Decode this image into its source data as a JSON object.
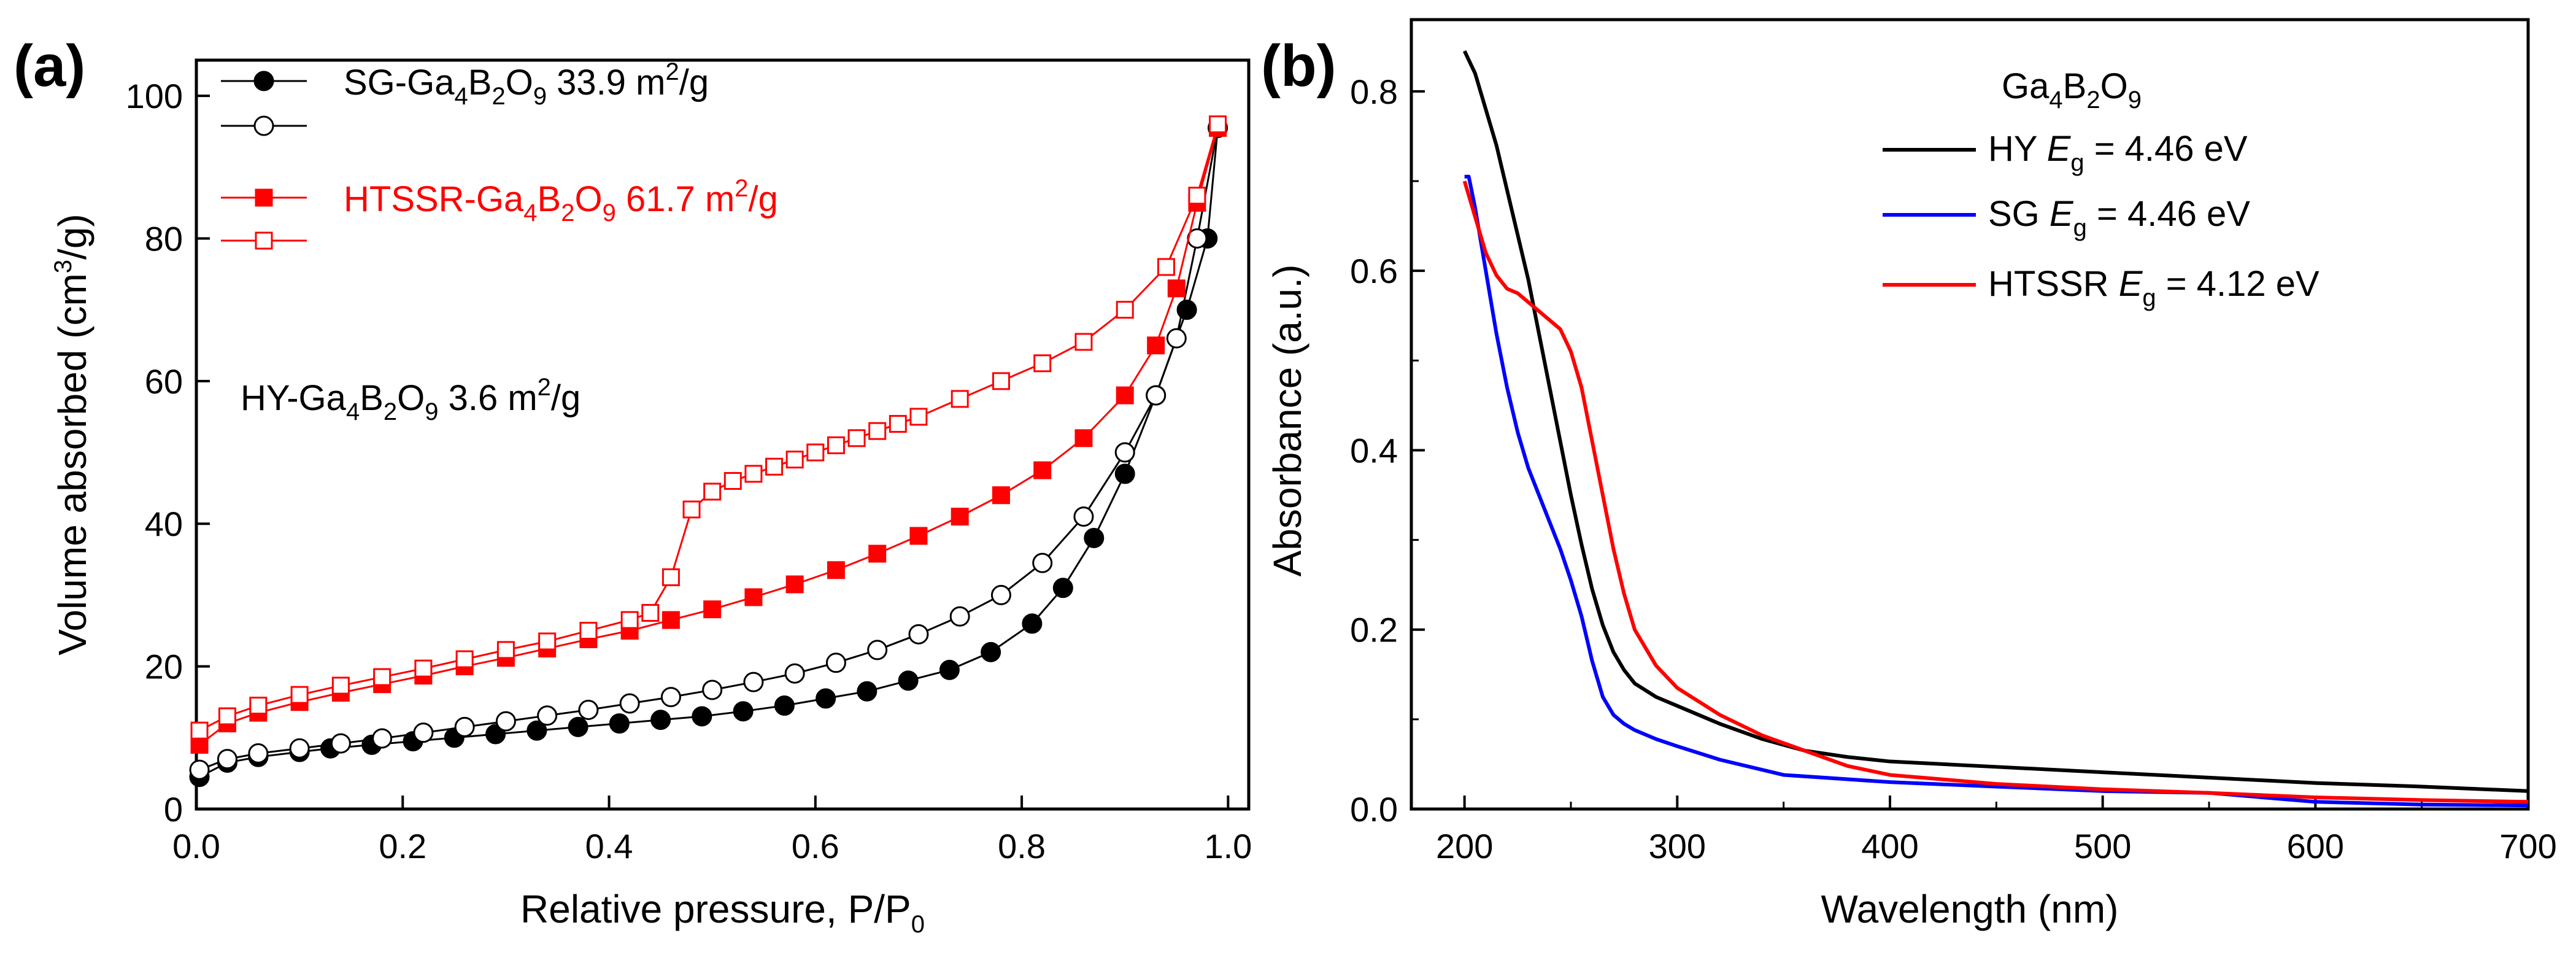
{
  "chart_data": [
    {
      "panel": "(a)",
      "type": "scatter",
      "xlabel_main": "Relative pressure, P/P",
      "xlabel_sub": "0",
      "ylabel_pre": "Volume absorbed (cm",
      "ylabel_sup": "3",
      "ylabel_post": "/g)",
      "xlim": [
        0.0,
        1.02
      ],
      "ylim": [
        0,
        105
      ],
      "xticks": [
        "0.0",
        "0.2",
        "0.4",
        "0.6",
        "0.8",
        "1.0"
      ],
      "yticks": [
        "0",
        "20",
        "40",
        "60",
        "80",
        "100"
      ],
      "legend": [
        {
          "parts": [
            "SG-Ga",
            "4",
            "B",
            "2",
            "O",
            "9",
            "  33.9 m",
            "2",
            "/g"
          ],
          "color": "#000000",
          "marker": "filled-circle"
        },
        {
          "parts": [],
          "color": "#000000",
          "marker": "open-circle"
        },
        {
          "parts": [
            "HTSSR-Ga",
            "4",
            "B",
            "2",
            "O",
            "9",
            "  61.7 m",
            "2",
            "/g"
          ],
          "color": "#ff0000",
          "marker": "filled-square"
        },
        {
          "parts": [],
          "color": "#ff0000",
          "marker": "open-square"
        }
      ],
      "annotation": {
        "parts": [
          "HY-Ga",
          "4",
          "B",
          "2",
          "O",
          "9",
          "  3.6 m",
          "2",
          "/g"
        ]
      },
      "series": [
        {
          "name": "SG adsorption",
          "color": "#000000",
          "marker": "circle",
          "filled": true,
          "x": [
            0.003,
            0.03,
            0.06,
            0.1,
            0.13,
            0.17,
            0.21,
            0.25,
            0.29,
            0.33,
            0.37,
            0.41,
            0.45,
            0.49,
            0.53,
            0.57,
            0.61,
            0.65,
            0.69,
            0.73,
            0.77,
            0.81,
            0.84,
            0.87,
            0.9,
            0.93,
            0.96,
            0.98,
            0.99
          ],
          "y": [
            4.5,
            6.5,
            7.3,
            8.0,
            8.5,
            9.0,
            9.5,
            10.0,
            10.5,
            11.0,
            11.5,
            12.0,
            12.5,
            13.0,
            13.7,
            14.5,
            15.5,
            16.5,
            18.0,
            19.5,
            22.0,
            26.0,
            31.0,
            38.0,
            47.0,
            58.0,
            70.0,
            80.0,
            95.5
          ]
        },
        {
          "name": "SG desorption",
          "color": "#000000",
          "marker": "circle",
          "filled": false,
          "x": [
            0.003,
            0.03,
            0.06,
            0.1,
            0.14,
            0.18,
            0.22,
            0.26,
            0.3,
            0.34,
            0.38,
            0.42,
            0.46,
            0.5,
            0.54,
            0.58,
            0.62,
            0.66,
            0.7,
            0.74,
            0.78,
            0.82,
            0.86,
            0.9,
            0.93,
            0.95,
            0.97,
            0.99
          ],
          "y": [
            5.5,
            7.0,
            7.8,
            8.5,
            9.2,
            9.9,
            10.7,
            11.5,
            12.3,
            13.1,
            13.9,
            14.8,
            15.7,
            16.7,
            17.8,
            19.0,
            20.5,
            22.3,
            24.5,
            27.0,
            30.0,
            34.5,
            41.0,
            50.0,
            58.0,
            66.0,
            80.0,
            95.5
          ]
        },
        {
          "name": "HTSSR adsorption",
          "color": "#ff0000",
          "marker": "square",
          "filled": true,
          "x": [
            0.003,
            0.03,
            0.06,
            0.1,
            0.14,
            0.18,
            0.22,
            0.26,
            0.3,
            0.34,
            0.38,
            0.42,
            0.46,
            0.5,
            0.54,
            0.58,
            0.62,
            0.66,
            0.7,
            0.74,
            0.78,
            0.82,
            0.86,
            0.9,
            0.93,
            0.95,
            0.97,
            0.99
          ],
          "y": [
            9.0,
            12.0,
            13.5,
            15.0,
            16.3,
            17.5,
            18.7,
            20.0,
            21.2,
            22.5,
            23.8,
            25.0,
            26.5,
            28.0,
            29.7,
            31.5,
            33.5,
            35.8,
            38.3,
            41.0,
            44.0,
            47.5,
            52.0,
            58.0,
            65.0,
            73.0,
            85.0,
            95.5
          ]
        },
        {
          "name": "HTSSR desorption",
          "color": "#ff0000",
          "marker": "square",
          "filled": false,
          "x": [
            0.003,
            0.03,
            0.06,
            0.1,
            0.14,
            0.18,
            0.22,
            0.26,
            0.3,
            0.34,
            0.38,
            0.42,
            0.44,
            0.46,
            0.48,
            0.5,
            0.52,
            0.54,
            0.56,
            0.58,
            0.6,
            0.62,
            0.64,
            0.66,
            0.68,
            0.7,
            0.74,
            0.78,
            0.82,
            0.86,
            0.9,
            0.94,
            0.97,
            0.99
          ],
          "y": [
            11.0,
            13.0,
            14.5,
            16.0,
            17.3,
            18.5,
            19.7,
            21.0,
            22.3,
            23.5,
            25.0,
            26.5,
            27.5,
            32.5,
            42.0,
            44.5,
            46.0,
            47.0,
            48.0,
            49.0,
            50.0,
            51.0,
            52.0,
            53.0,
            54.0,
            55.0,
            57.5,
            60.0,
            62.5,
            65.5,
            70.0,
            76.0,
            86.0,
            96.0
          ]
        }
      ]
    },
    {
      "panel": "(b)",
      "type": "line",
      "xlabel": "Wavelength (nm)",
      "ylabel": "Absorbance (a.u.)",
      "xlim": [
        175,
        700
      ],
      "ylim": [
        0.0,
        0.88
      ],
      "xticks": [
        "200",
        "300",
        "400",
        "500",
        "600",
        "700"
      ],
      "yticks": [
        "0.0",
        "0.2",
        "0.4",
        "0.6",
        "0.8"
      ],
      "legend_title": {
        "parts": [
          "Ga",
          "4",
          "B",
          "2",
          "O",
          "9"
        ]
      },
      "legend": [
        {
          "name": "HY",
          "eg_label": "E",
          "eg_sub": "g",
          "eg_value": " = 4.46 eV",
          "color": "#000000"
        },
        {
          "name": "SG",
          "eg_label": "E",
          "eg_sub": "g",
          "eg_value": " = 4.46 eV",
          "color": "#0000ff"
        },
        {
          "name": "HTSSR",
          "eg_label": "E",
          "eg_sub": "g",
          "eg_value": " = 4.12 eV",
          "color": "#ff0000"
        }
      ],
      "series": [
        {
          "name": "HY",
          "color": "#000000",
          "x": [
            200,
            205,
            210,
            215,
            220,
            225,
            230,
            235,
            240,
            245,
            250,
            255,
            260,
            265,
            270,
            275,
            280,
            290,
            300,
            320,
            340,
            360,
            380,
            400,
            450,
            500,
            550,
            600,
            650,
            700
          ],
          "y": [
            0.845,
            0.82,
            0.78,
            0.74,
            0.69,
            0.64,
            0.59,
            0.53,
            0.47,
            0.41,
            0.35,
            0.295,
            0.245,
            0.205,
            0.175,
            0.155,
            0.14,
            0.125,
            0.115,
            0.095,
            0.078,
            0.065,
            0.058,
            0.053,
            0.047,
            0.041,
            0.035,
            0.029,
            0.025,
            0.02
          ]
        },
        {
          "name": "SG",
          "color": "#0000ff",
          "x": [
            200,
            202,
            205,
            210,
            215,
            220,
            225,
            230,
            235,
            240,
            245,
            250,
            255,
            260,
            265,
            270,
            275,
            280,
            290,
            300,
            320,
            350,
            400,
            450,
            500,
            550,
            600,
            650,
            700
          ],
          "y": [
            0.705,
            0.705,
            0.67,
            0.6,
            0.53,
            0.47,
            0.42,
            0.38,
            0.35,
            0.32,
            0.29,
            0.255,
            0.215,
            0.165,
            0.125,
            0.105,
            0.095,
            0.088,
            0.078,
            0.07,
            0.055,
            0.038,
            0.03,
            0.025,
            0.02,
            0.018,
            0.008,
            0.005,
            0.004
          ]
        },
        {
          "name": "HTSSR",
          "color": "#ff0000",
          "x": [
            200,
            205,
            210,
            215,
            220,
            225,
            230,
            235,
            240,
            245,
            250,
            255,
            260,
            265,
            270,
            275,
            280,
            290,
            300,
            310,
            320,
            340,
            360,
            380,
            400,
            450,
            500,
            550,
            600,
            650,
            700
          ],
          "y": [
            0.7,
            0.66,
            0.62,
            0.595,
            0.58,
            0.575,
            0.565,
            0.555,
            0.545,
            0.535,
            0.51,
            0.47,
            0.41,
            0.35,
            0.29,
            0.24,
            0.2,
            0.16,
            0.135,
            0.12,
            0.105,
            0.082,
            0.065,
            0.048,
            0.038,
            0.028,
            0.022,
            0.018,
            0.013,
            0.01,
            0.008
          ]
        }
      ]
    }
  ]
}
